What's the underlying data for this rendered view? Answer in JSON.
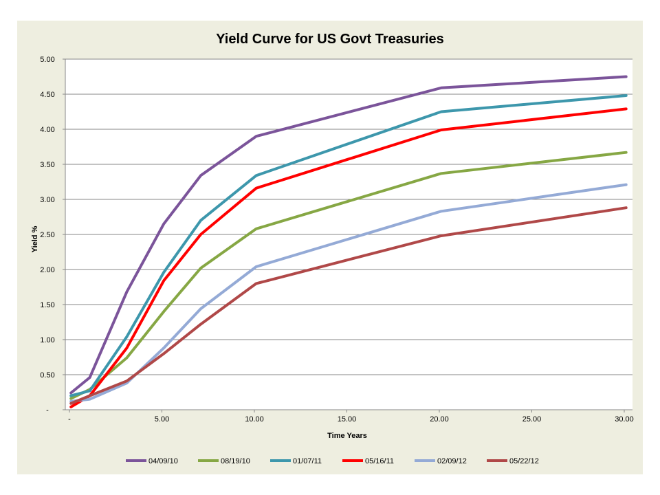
{
  "chart_data": {
    "type": "line",
    "title": "Yield Curve for US Govt  Treasuries",
    "xlabel": "Time Years",
    "ylabel": "Yield %",
    "xlim": [
      0,
      30
    ],
    "ylim": [
      0,
      5
    ],
    "x_ticks": [
      0,
      5,
      10,
      15,
      20,
      25,
      30
    ],
    "x_tick_labels": [
      "-",
      "5.00",
      "10.00",
      "15.00",
      "20.00",
      "25.00",
      "30.00"
    ],
    "y_ticks": [
      0,
      0.5,
      1,
      1.5,
      2,
      2.5,
      3,
      3.5,
      4,
      4.5,
      5
    ],
    "y_tick_labels": [
      "-",
      "0.50",
      "1.00",
      "1.50",
      "2.00",
      "2.50",
      "3.00",
      "3.50",
      "4.00",
      "4.50",
      "5.00"
    ],
    "grid": "horizontal",
    "legend_position": "bottom",
    "x": [
      0.08,
      1.1,
      3.1,
      5.1,
      7.1,
      10.1,
      20.1,
      30.1
    ],
    "series": [
      {
        "name": "04/09/10",
        "color": "#7b549a",
        "values": [
          0.24,
          0.46,
          1.68,
          2.65,
          3.34,
          3.9,
          4.59,
          4.75
        ]
      },
      {
        "name": "08/19/10",
        "color": "#86a744",
        "values": [
          0.16,
          0.29,
          0.74,
          1.4,
          2.02,
          2.58,
          3.37,
          3.67
        ]
      },
      {
        "name": "01/07/11",
        "color": "#3d97ac",
        "values": [
          0.2,
          0.27,
          1.04,
          1.96,
          2.7,
          3.34,
          4.25,
          4.48
        ]
      },
      {
        "name": "05/16/11",
        "color": "#ff0000",
        "values": [
          0.04,
          0.2,
          0.88,
          1.84,
          2.5,
          3.16,
          3.99,
          4.29
        ]
      },
      {
        "name": "02/09/12",
        "color": "#94aad6",
        "values": [
          0.12,
          0.15,
          0.38,
          0.88,
          1.44,
          2.04,
          2.83,
          3.21
        ]
      },
      {
        "name": "05/22/12",
        "color": "#b04848",
        "values": [
          0.09,
          0.2,
          0.41,
          0.8,
          1.22,
          1.8,
          2.48,
          2.88
        ]
      }
    ]
  }
}
